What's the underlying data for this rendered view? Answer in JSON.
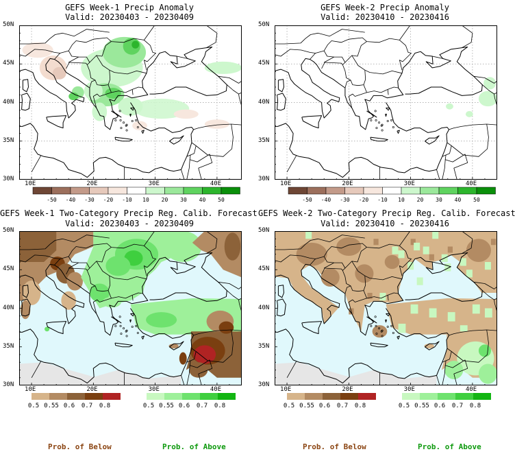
{
  "panels": [
    {
      "title": "GEFS Week-1 Precip Anomaly",
      "valid": "Valid: 20230403 - 20230409"
    },
    {
      "title": "GEFS Week-2 Precip Anomaly",
      "valid": "Valid: 20230410 - 20230416"
    },
    {
      "title": "GEFS Week-1 Two-Category Precip Reg. Calib. Forecast",
      "valid": "Valid: 20230403 - 20230409"
    },
    {
      "title": "GEFS Week-2 Two-Category Precip Reg. Calib. Forecast",
      "valid": "Valid: 20230410 - 20230416"
    }
  ],
  "axes": {
    "lat_labels": [
      "50N",
      "45N",
      "40N",
      "35N",
      "30N"
    ],
    "lon_labels": [
      "10E",
      "20E",
      "30E",
      "40E"
    ]
  },
  "anomaly_colorbar": {
    "labels": [
      "-50",
      "-40",
      "-30",
      "-20",
      "-10",
      "10",
      "20",
      "30",
      "40",
      "50"
    ],
    "colors": [
      "#6e4635",
      "#9c6f5c",
      "#c39a89",
      "#e6c9bb",
      "#f7e7de",
      "#ffffff",
      "#cdf7cd",
      "#9be89b",
      "#5fd35f",
      "#2cb52c",
      "#0a8f0a"
    ]
  },
  "below_colorbar": {
    "labels": [
      "0.5",
      "0.55",
      "0.6",
      "0.7",
      "0.8"
    ],
    "colors": [
      "#d6b48a",
      "#b38b63",
      "#8c6239",
      "#7a3f10",
      "#b02323"
    ]
  },
  "above_colorbar": {
    "labels": [
      "0.5",
      "0.55",
      "0.6",
      "0.7",
      "0.8"
    ],
    "colors": [
      "#c8f8c0",
      "#9ef09a",
      "#6ee26e",
      "#3fcf3f",
      "#12b512"
    ]
  },
  "footer": {
    "below": "Prob. of Below",
    "above": "Prob. of Above",
    "below_color": "#8b4513",
    "above_color": "#0f9a0f"
  },
  "map_colors": {
    "sea_forecast": "#e0f8fc",
    "africa_forecast": "#e6e6e6"
  }
}
